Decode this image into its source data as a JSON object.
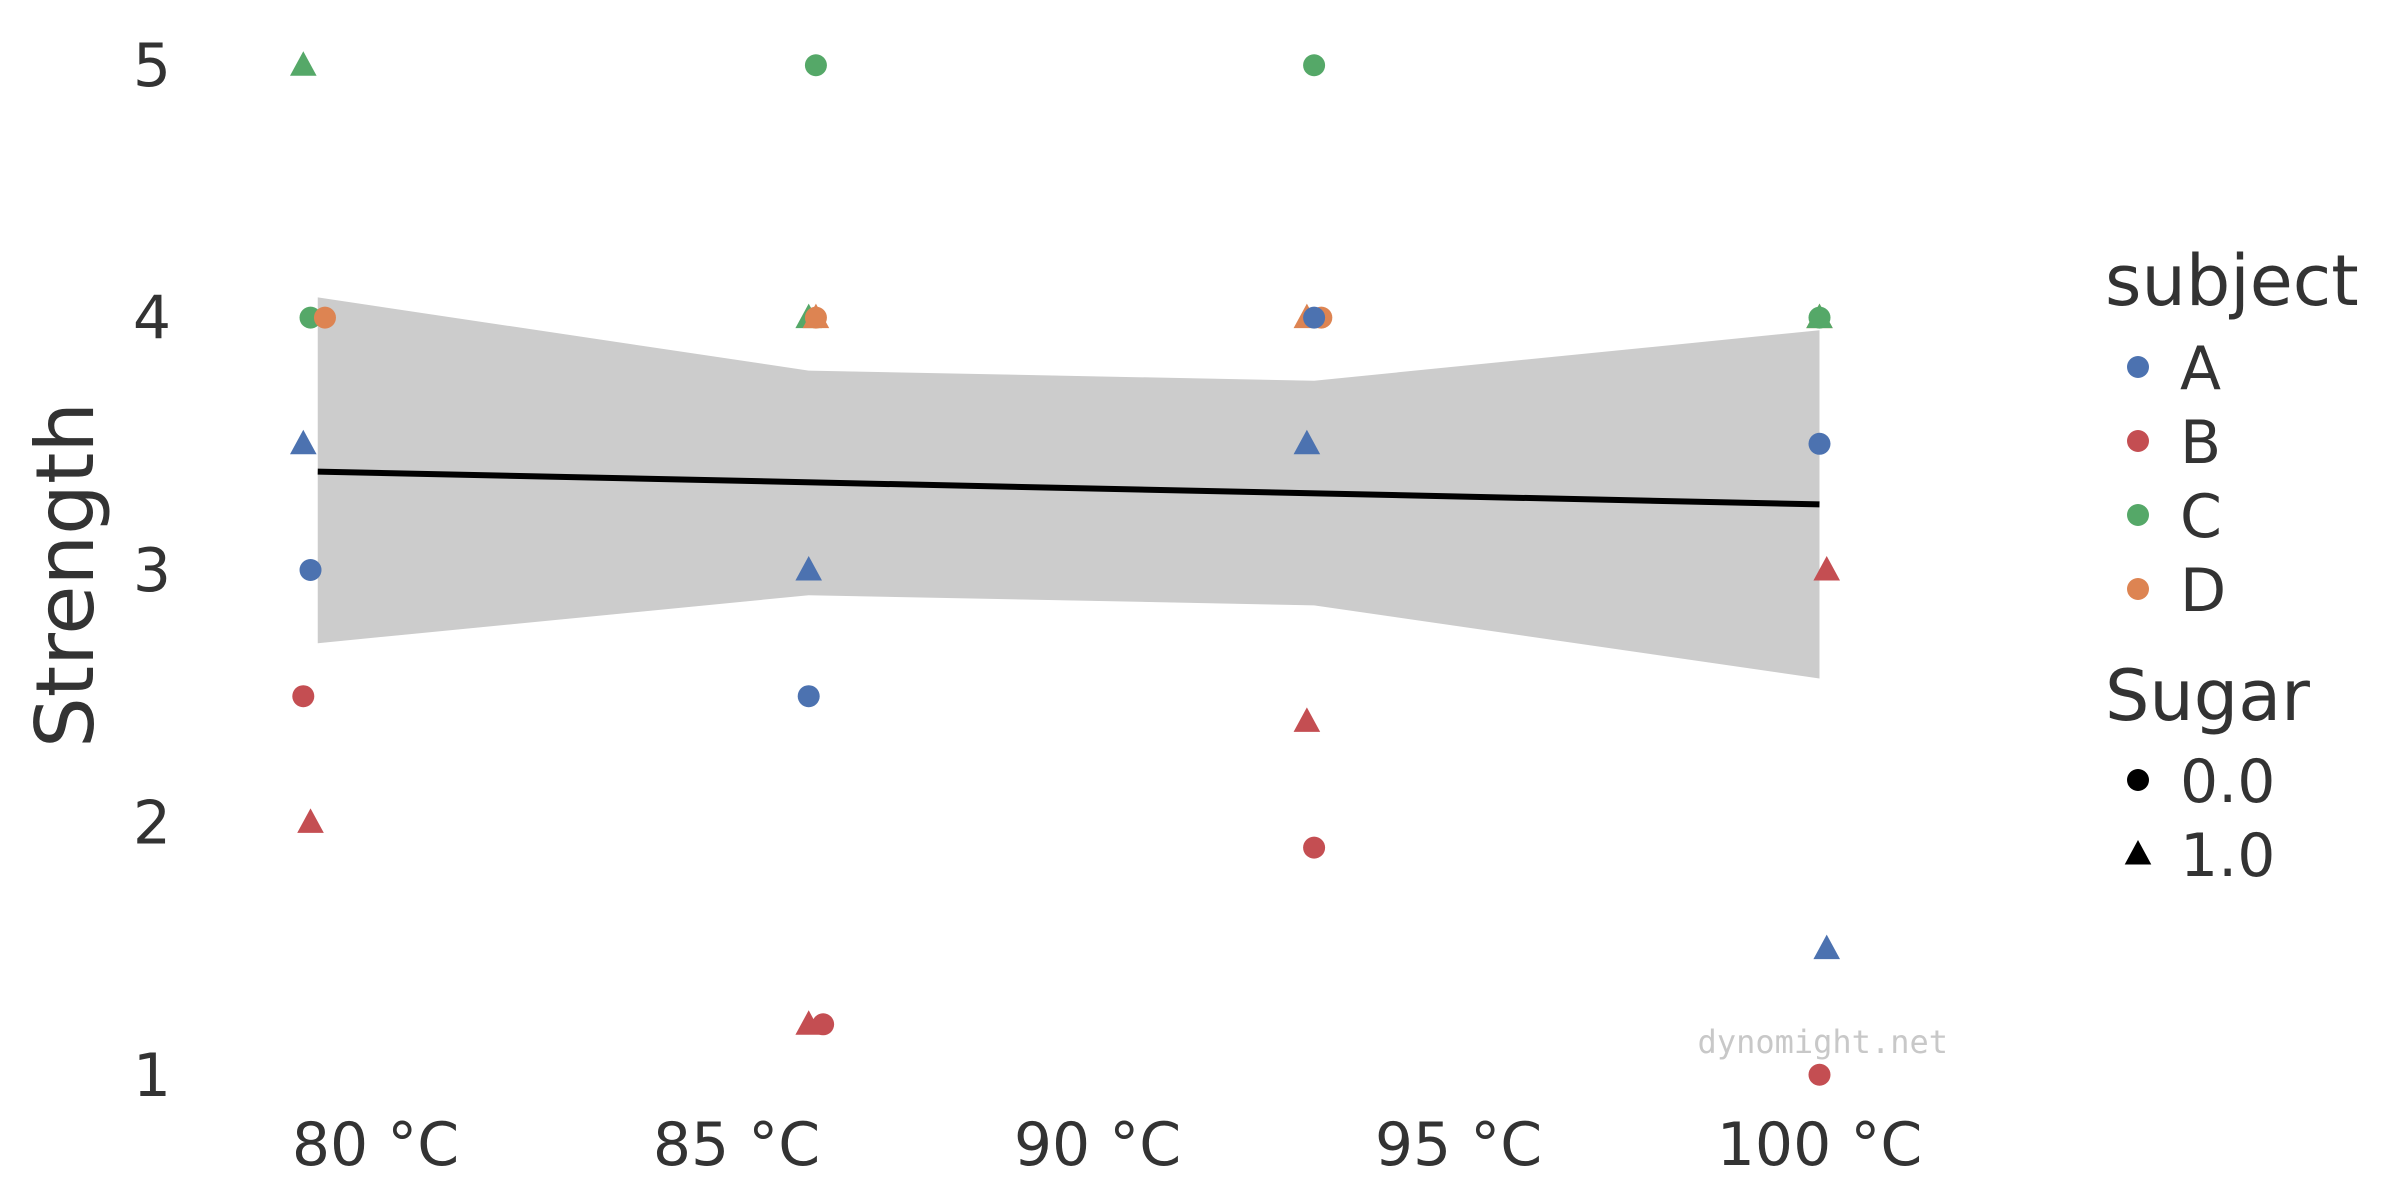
{
  "chart_data": {
    "type": "scatter",
    "xlabel": "",
    "ylabel": "Strength",
    "x_ticks": [
      {
        "value": 80,
        "label": "80 °C"
      },
      {
        "value": 85,
        "label": "85 °C"
      },
      {
        "value": 90,
        "label": "90 °C"
      },
      {
        "value": 95,
        "label": "95 °C"
      },
      {
        "value": 100,
        "label": "100 °C"
      }
    ],
    "y_ticks": [
      {
        "value": 1,
        "label": "1"
      },
      {
        "value": 2,
        "label": "2"
      },
      {
        "value": 3,
        "label": "3"
      },
      {
        "value": 4,
        "label": "4"
      },
      {
        "value": 5,
        "label": "5"
      }
    ],
    "xlim": [
      77.5,
      102.5
    ],
    "ylim": [
      0.9,
      5.1
    ],
    "grid": false,
    "legend_placement": "right",
    "colors": {
      "A": "#4c72b0",
      "B": "#c44e52",
      "C": "#55a868",
      "D": "#dd8452"
    },
    "legend": {
      "hue_title": "subject",
      "hue_entries": [
        {
          "label": "A",
          "color": "#4c72b0"
        },
        {
          "label": "B",
          "color": "#c44e52"
        },
        {
          "label": "C",
          "color": "#55a868"
        },
        {
          "label": "D",
          "color": "#dd8452"
        }
      ],
      "style_title": "Sugar",
      "style_entries": [
        {
          "label": "0.0",
          "marker": "circle"
        },
        {
          "label": "1.0",
          "marker": "triangle"
        }
      ]
    },
    "points": [
      {
        "x": 79.0,
        "y": 5.0,
        "subject": "C",
        "sugar": 1
      },
      {
        "x": 79.1,
        "y": 4.0,
        "subject": "C",
        "sugar": 0
      },
      {
        "x": 79.3,
        "y": 4.0,
        "subject": "D",
        "sugar": 0
      },
      {
        "x": 79.0,
        "y": 3.5,
        "subject": "A",
        "sugar": 1
      },
      {
        "x": 79.1,
        "y": 3.0,
        "subject": "A",
        "sugar": 0
      },
      {
        "x": 79.0,
        "y": 2.5,
        "subject": "B",
        "sugar": 0
      },
      {
        "x": 79.1,
        "y": 2.0,
        "subject": "B",
        "sugar": 1
      },
      {
        "x": 86.1,
        "y": 5.0,
        "subject": "C",
        "sugar": 0
      },
      {
        "x": 86.0,
        "y": 4.0,
        "subject": "C",
        "sugar": 1
      },
      {
        "x": 86.1,
        "y": 4.0,
        "subject": "D",
        "sugar": 1
      },
      {
        "x": 86.1,
        "y": 4.0,
        "subject": "D",
        "sugar": 0
      },
      {
        "x": 86.0,
        "y": 3.0,
        "subject": "A",
        "sugar": 1
      },
      {
        "x": 86.0,
        "y": 2.5,
        "subject": "A",
        "sugar": 0
      },
      {
        "x": 86.0,
        "y": 1.2,
        "subject": "B",
        "sugar": 1
      },
      {
        "x": 86.2,
        "y": 1.2,
        "subject": "B",
        "sugar": 0
      },
      {
        "x": 93.0,
        "y": 5.0,
        "subject": "C",
        "sugar": 0
      },
      {
        "x": 92.9,
        "y": 4.0,
        "subject": "D",
        "sugar": 1
      },
      {
        "x": 93.1,
        "y": 4.0,
        "subject": "D",
        "sugar": 0
      },
      {
        "x": 93.0,
        "y": 4.0,
        "subject": "A",
        "sugar": 0
      },
      {
        "x": 92.9,
        "y": 3.5,
        "subject": "A",
        "sugar": 1
      },
      {
        "x": 92.9,
        "y": 2.4,
        "subject": "B",
        "sugar": 1
      },
      {
        "x": 93.0,
        "y": 1.9,
        "subject": "B",
        "sugar": 0
      },
      {
        "x": 100.0,
        "y": 4.0,
        "subject": "D",
        "sugar": 1
      },
      {
        "x": 100.0,
        "y": 4.0,
        "subject": "C",
        "sugar": 1
      },
      {
        "x": 100.0,
        "y": 4.0,
        "subject": "C",
        "sugar": 0
      },
      {
        "x": 100.0,
        "y": 3.5,
        "subject": "A",
        "sugar": 0
      },
      {
        "x": 100.1,
        "y": 3.0,
        "subject": "B",
        "sugar": 1
      },
      {
        "x": 100.1,
        "y": 1.5,
        "subject": "A",
        "sugar": 1
      },
      {
        "x": 100.0,
        "y": 1.0,
        "subject": "B",
        "sugar": 0
      }
    ],
    "regression": {
      "color": "#000000",
      "line": [
        {
          "x": 79.2,
          "y": 3.39
        },
        {
          "x": 100.0,
          "y": 3.26
        }
      ],
      "ci_color": "#cccccc",
      "ci": [
        {
          "x": 79.2,
          "low": 2.71,
          "high": 4.08
        },
        {
          "x": 86.0,
          "low": 2.9,
          "high": 3.79
        },
        {
          "x": 93.0,
          "low": 2.86,
          "high": 3.75
        },
        {
          "x": 100.0,
          "low": 2.57,
          "high": 3.95
        }
      ]
    }
  },
  "watermark": "dynomight.net"
}
